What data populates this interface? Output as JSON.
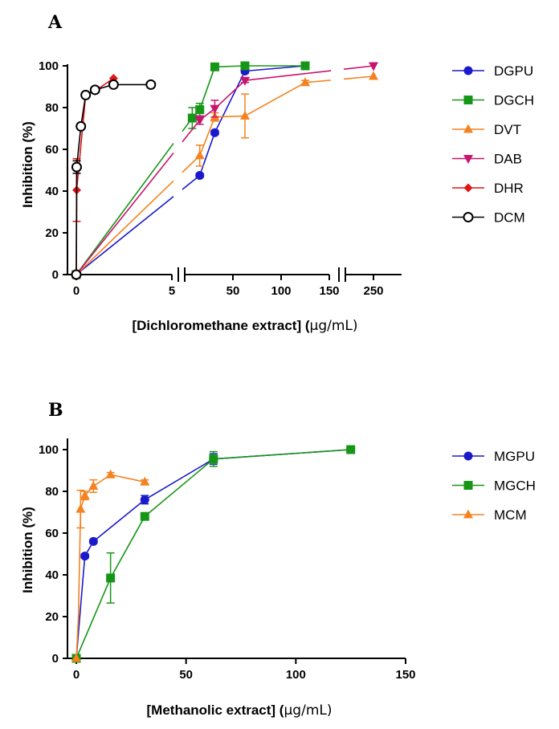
{
  "colors": {
    "DGPU": "#1a1acc",
    "DGCH": "#169616",
    "DVT": "#f58220",
    "DAB": "#c8146e",
    "DHR": "#e01515",
    "DCM": "#000000",
    "MGPU": "#1a1acc",
    "MGCH": "#169616",
    "MCM": "#f58220"
  },
  "chart_data": [
    {
      "panel": "A",
      "type": "line",
      "xlabel_main": "[Dichloromethane extract] (",
      "xlabel_unit": "μg/mL)",
      "ylabel": "Inhibition (%)",
      "ylim": [
        0,
        100
      ],
      "yticks": [
        0,
        20,
        40,
        60,
        80,
        100
      ],
      "x_segments": [
        {
          "range": [
            0,
            5
          ],
          "ticks": [
            0,
            5
          ]
        },
        {
          "range": [
            0,
            150
          ],
          "ticks": [
            50,
            100,
            150
          ]
        },
        {
          "range": [
            200,
            300
          ],
          "ticks": [
            250
          ]
        }
      ],
      "legend": [
        "DGPU",
        "DGCH",
        "DVT",
        "DAB",
        "DHR",
        "DCM"
      ],
      "series": [
        {
          "name": "DGPU",
          "marker": "circle",
          "x": [
            0,
            15.6,
            31.2,
            62.5,
            125
          ],
          "y": [
            0,
            47.5,
            68,
            97.5,
            100
          ],
          "err": [
            0,
            1,
            1,
            1,
            0.5
          ]
        },
        {
          "name": "DGCH",
          "marker": "square",
          "x": [
            0,
            7.8,
            15.6,
            31.2,
            62.5,
            125
          ],
          "y": [
            0,
            75,
            79,
            99.5,
            100,
            100
          ],
          "err": [
            0,
            5,
            3,
            0.5,
            0.5,
            0.5
          ]
        },
        {
          "name": "DVT",
          "marker": "triangle-up",
          "x": [
            0,
            15.6,
            31.2,
            62.5,
            125,
            250
          ],
          "y": [
            0,
            57,
            75.5,
            76,
            92,
            95
          ],
          "err": [
            0,
            5,
            2,
            10.5,
            1,
            0.5
          ]
        },
        {
          "name": "DAB",
          "marker": "triangle-down",
          "x": [
            0,
            15.6,
            31.2,
            62.5,
            250
          ],
          "y": [
            0,
            74,
            79.5,
            93,
            100
          ],
          "err": [
            0,
            2,
            4,
            1,
            0.5
          ]
        },
        {
          "name": "DHR",
          "marker": "diamond",
          "x": [
            0,
            0.02,
            0.49,
            0.98,
            1.95
          ],
          "y": [
            0,
            40.5,
            86,
            88,
            94
          ],
          "err": [
            0,
            15,
            1,
            1,
            0.5
          ]
        },
        {
          "name": "DCM",
          "marker": "open-circle",
          "x": [
            0,
            0.02,
            0.24,
            0.49,
            0.98,
            1.95,
            3.9
          ],
          "y": [
            0,
            51.5,
            71,
            86,
            88.5,
            91,
            91
          ],
          "err": [
            0,
            3,
            1,
            1,
            1,
            0.5,
            0.5
          ]
        }
      ]
    },
    {
      "panel": "B",
      "type": "line",
      "xlabel_main": "[Methanolic extract] (",
      "xlabel_unit": "μg/mL)",
      "ylabel": "Inhibition (%)",
      "xlim": [
        0,
        150
      ],
      "xticks": [
        0,
        50,
        100,
        150
      ],
      "ylim": [
        0,
        100
      ],
      "yticks": [
        0,
        20,
        40,
        60,
        80,
        100
      ],
      "legend": [
        "MGPU",
        "MGCH",
        "MCM"
      ],
      "series": [
        {
          "name": "MGPU",
          "marker": "circle",
          "x": [
            0,
            3.9,
            7.8,
            31.2,
            62.5,
            125
          ],
          "y": [
            0,
            49,
            56,
            76,
            95.5,
            100
          ],
          "err": [
            0,
            1,
            1,
            2,
            2.5,
            0.5
          ]
        },
        {
          "name": "MGCH",
          "marker": "square",
          "x": [
            0,
            15.6,
            31.2,
            62.5,
            125
          ],
          "y": [
            0,
            38.5,
            68,
            95.5,
            100
          ],
          "err": [
            0,
            12,
            1,
            3.5,
            0.5
          ]
        },
        {
          "name": "MCM",
          "marker": "triangle-up",
          "x": [
            0,
            0.98,
            1.95,
            3.9,
            7.8,
            15.6,
            31.2
          ],
          "y": [
            0,
            20,
            71.5,
            78,
            82.5,
            88,
            84.5
          ],
          "err": [
            0,
            0,
            9,
            2,
            3,
            1,
            1
          ]
        }
      ]
    }
  ]
}
